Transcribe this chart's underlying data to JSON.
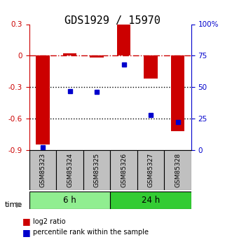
{
  "title": "GDS1929 / 15970",
  "samples": [
    "GSM85323",
    "GSM85324",
    "GSM85325",
    "GSM85326",
    "GSM85327",
    "GSM85328"
  ],
  "log2_ratio": [
    -0.85,
    0.02,
    -0.02,
    0.3,
    -0.22,
    -0.72
  ],
  "percentile_rank": [
    2,
    47,
    46,
    68,
    28,
    22
  ],
  "ylim_left": [
    -0.9,
    0.3
  ],
  "ylim_right": [
    0,
    100
  ],
  "yticks_left": [
    -0.9,
    -0.6,
    -0.3,
    0,
    0.3
  ],
  "ytick_labels_left": [
    "-0.9",
    "-0.6",
    "-0.3",
    "0",
    "0.3"
  ],
  "yticks_right": [
    0,
    25,
    50,
    75,
    100
  ],
  "ytick_labels_right": [
    "0",
    "25",
    "50",
    "75",
    "100%"
  ],
  "bar_color": "#CC0000",
  "dot_color": "#0000CC",
  "bar_width": 0.5,
  "group1_color": "#90EE90",
  "group2_color": "#33CC33",
  "group1_label": "6 h",
  "group2_label": "24 h",
  "time_label": "time",
  "legend_bar_label": "log2 ratio",
  "legend_dot_label": "percentile rank within the sample",
  "title_fontsize": 11,
  "tick_fontsize": 7.5,
  "label_fontsize": 8
}
